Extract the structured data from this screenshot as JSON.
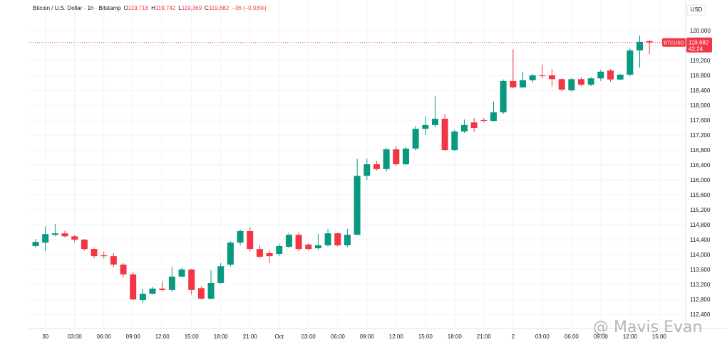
{
  "header": {
    "title": "Bitcoin / U.S. Dollar · 1h · Bitstamp",
    "ohlc": [
      {
        "key": "O",
        "value": "119,718"
      },
      {
        "key": "H",
        "value": "119,742"
      },
      {
        "key": "L",
        "value": "119,369"
      },
      {
        "key": "C",
        "value": "119,682"
      }
    ],
    "change": "−36 (−0.03%)",
    "currency": "USD"
  },
  "watermark": "@ Mavis Evan",
  "chart_data": {
    "type": "candlestick",
    "categories": [
      null,
      "30",
      null,
      null,
      "03:00",
      null,
      null,
      "06:00",
      null,
      null,
      "09:00",
      null,
      null,
      "12:00",
      null,
      null,
      "15:00",
      null,
      null,
      "18:00",
      null,
      null,
      "21:00",
      null,
      null,
      "Oct",
      null,
      null,
      "03:00",
      null,
      null,
      "06:00",
      null,
      null,
      "09:00",
      null,
      null,
      "12:00",
      null,
      null,
      "15:00",
      null,
      null,
      "18:00",
      null,
      null,
      "21:00",
      null,
      null,
      "2",
      null,
      null,
      "03:00",
      null,
      null,
      "06:00",
      null,
      null,
      "09:00",
      null,
      null,
      "12:00",
      null,
      null,
      "15:00"
    ],
    "open": [
      114230,
      114320,
      114530,
      114570,
      114490,
      114400,
      114150,
      113980,
      113960,
      113730,
      113470,
      112780,
      112950,
      113090,
      113050,
      113410,
      113600,
      113100,
      112820,
      113240,
      113730,
      114320,
      114630,
      114150,
      114040,
      114020,
      114210,
      114530,
      114270,
      114170,
      114250,
      114570,
      114250,
      114530,
      116110,
      116420,
      116290,
      116820,
      116420,
      116840,
      117370,
      117470,
      117640,
      116800,
      117300,
      117540,
      117600,
      117580,
      117810,
      118650,
      118480,
      118670,
      118800,
      118800,
      118700,
      118400,
      118700,
      118550,
      118720,
      118930,
      118690,
      118820,
      119470,
      119718,
      null
    ],
    "high": [
      114420,
      114760,
      114820,
      114630,
      114530,
      114420,
      114190,
      114080,
      114040,
      113770,
      113520,
      113090,
      113140,
      113290,
      113660,
      113640,
      113620,
      113160,
      113580,
      113770,
      114360,
      114670,
      114740,
      114250,
      114110,
      114290,
      114590,
      114590,
      114300,
      114550,
      114690,
      114590,
      114690,
      116570,
      116570,
      116510,
      116860,
      116910,
      116880,
      117450,
      117710,
      118250,
      117770,
      117350,
      117620,
      117660,
      117660,
      118100,
      118690,
      119500,
      118900,
      118840,
      119090,
      118970,
      118720,
      118740,
      118760,
      118760,
      118950,
      118970,
      118840,
      119520,
      119870,
      119742,
      null
    ],
    "low": [
      114190,
      114090,
      114490,
      114460,
      114340,
      114110,
      113900,
      113900,
      113660,
      113390,
      112780,
      112700,
      112930,
      113010,
      113010,
      113390,
      112930,
      112800,
      112800,
      113220,
      113680,
      114250,
      114090,
      113900,
      113770,
      113960,
      114170,
      114090,
      114110,
      114130,
      114210,
      114210,
      114210,
      114530,
      116000,
      116250,
      116230,
      116380,
      116400,
      116780,
      117200,
      117410,
      116780,
      116780,
      117260,
      117280,
      117540,
      117560,
      117770,
      118460,
      118460,
      118610,
      118720,
      118500,
      118380,
      118360,
      118510,
      118510,
      118650,
      118630,
      118670,
      118780,
      119010,
      119369,
      null
    ],
    "close": [
      114340,
      114550,
      114570,
      114490,
      114400,
      114150,
      113960,
      113960,
      113730,
      113470,
      112800,
      112950,
      113090,
      113050,
      113410,
      113600,
      113050,
      112820,
      113240,
      113690,
      114320,
      114630,
      114150,
      113940,
      113960,
      114230,
      114530,
      114150,
      114150,
      114250,
      114570,
      114250,
      114530,
      116110,
      116420,
      116290,
      116820,
      116420,
      116840,
      117370,
      117470,
      117640,
      116800,
      117300,
      117470,
      117390,
      117580,
      117810,
      118650,
      118480,
      118670,
      118800,
      118780,
      118700,
      118420,
      118700,
      118550,
      118720,
      118900,
      118690,
      118820,
      119470,
      119700,
      119682,
      null
    ],
    "up_color": "#089981",
    "down_color": "#f23645",
    "ylim": [
      112020,
      120820
    ],
    "yticks": [
      {
        "value": 112400,
        "label": "112,400"
      },
      {
        "value": 112800,
        "label": "112,800"
      },
      {
        "value": 113200,
        "label": "113,200"
      },
      {
        "value": 113600,
        "label": "113,600"
      },
      {
        "value": 114000,
        "label": "114,000"
      },
      {
        "value": 114400,
        "label": "114,400"
      },
      {
        "value": 114800,
        "label": "114,800"
      },
      {
        "value": 115200,
        "label": "115,200"
      },
      {
        "value": 115600,
        "label": "115,600"
      },
      {
        "value": 116000,
        "label": "116,000"
      },
      {
        "value": 116400,
        "label": "116,400"
      },
      {
        "value": 116800,
        "label": "116,800"
      },
      {
        "value": 117200,
        "label": "117,200"
      },
      {
        "value": 117600,
        "label": "117,600"
      },
      {
        "value": 118000,
        "label": "118,000"
      },
      {
        "value": 118400,
        "label": "118,400"
      },
      {
        "value": 118800,
        "label": "118,800"
      },
      {
        "value": 119200,
        "label": "119,200"
      },
      {
        "value": 119600,
        "label": "119,600"
      },
      {
        "value": 120000,
        "label": "120,000"
      }
    ],
    "grid": true,
    "last_price": {
      "symbol": "BTCUSD",
      "label": "119,682",
      "countdown": "42:24"
    }
  }
}
